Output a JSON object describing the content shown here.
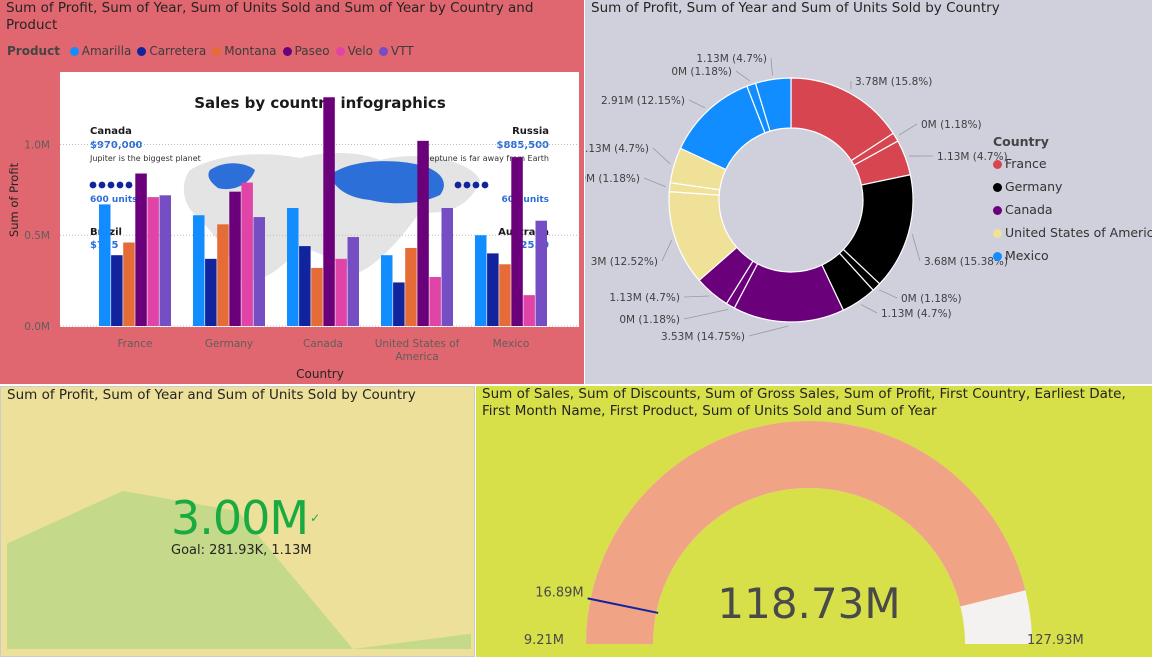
{
  "bar_panel": {
    "title": "Sum of Profit, Sum of Year, Sum of Units Sold and Sum of Year by Country and Product",
    "legend_label": "Product",
    "infographic": {
      "heading": "Sales by country infographics",
      "canada_name": "Canada",
      "canada_value": "$970,000",
      "canada_text": "Jupiter is the biggest planet",
      "canada_units": "600 units",
      "russia_name": "Russia",
      "russia_value": "$885,500",
      "russia_text": "Neptune is far away from Earth",
      "russia_units": "600 units",
      "brazil_name": "Brazil",
      "brazil_value": "$7..5",
      "australia_name": "Australia",
      "australia_value": "$25..0"
    }
  },
  "donut_panel": {
    "title": "Sum of Profit, Sum of Year and Sum of Units Sold by Country",
    "legend_title": "Country"
  },
  "card_panel": {
    "title": "Sum of Profit, Sum of Year and Sum of Units Sold by Country",
    "value": "3.00M",
    "check": "✓",
    "goal": "Goal: 281.93K, 1.13M"
  },
  "gauge_panel": {
    "title": "Sum of Sales, Sum of Discounts, Sum of Gross Sales, Sum of Profit, First Country, Earliest Date, First Month Name, First Product, Sum of Units Sold and Sum of Year",
    "value_label": "118.73M",
    "min_label": "9.21M",
    "max_label": "127.93M",
    "target_label": "16.89M"
  },
  "chart_data": [
    {
      "type": "bar",
      "title": "Sum of Profit, Sum of Year, Sum of Units Sold and Sum of Year by Country and Product",
      "xlabel": "Country",
      "ylabel": "Sum of Profit",
      "ylim": [
        0,
        1300000
      ],
      "yticks": [
        "0.0M",
        "0.5M",
        "1.0M"
      ],
      "ytick_values": [
        0,
        500000,
        1000000
      ],
      "categories": [
        "France",
        "Germany",
        "Canada",
        "United States of America",
        "Mexico"
      ],
      "category_lines": [
        [
          "France"
        ],
        [
          "Germany"
        ],
        [
          "Canada"
        ],
        [
          "United States of",
          "America"
        ],
        [
          "Mexico"
        ]
      ],
      "legend_title": "Product",
      "legend_position": "top",
      "series": [
        {
          "name": "Amarilla",
          "color": "#118dff",
          "values": [
            670000,
            610000,
            650000,
            390000,
            500000
          ]
        },
        {
          "name": "Carretera",
          "color": "#12239e",
          "values": [
            390000,
            370000,
            440000,
            240000,
            400000
          ]
        },
        {
          "name": "Montana",
          "color": "#e66c37",
          "values": [
            460000,
            560000,
            320000,
            430000,
            340000
          ]
        },
        {
          "name": "Paseo",
          "color": "#6b007b",
          "values": [
            840000,
            740000,
            1260000,
            1020000,
            930000
          ]
        },
        {
          "name": "Velo",
          "color": "#e044a7",
          "values": [
            710000,
            790000,
            370000,
            270000,
            170000
          ]
        },
        {
          "name": "VTT",
          "color": "#744ec2",
          "values": [
            720000,
            600000,
            490000,
            650000,
            580000
          ]
        }
      ]
    },
    {
      "type": "pie",
      "subtype": "donut",
      "title": "Sum of Profit, Sum of Year and Sum of Units Sold by Country",
      "legend_title": "Country",
      "legend_position": "right",
      "countries": [
        {
          "name": "France",
          "color": "#d64550"
        },
        {
          "name": "Germany",
          "color": "#000000"
        },
        {
          "name": "Canada",
          "color": "#6b007b"
        },
        {
          "name": "United States of America",
          "color": "#f0e199"
        },
        {
          "name": "Mexico",
          "color": "#118dff"
        }
      ],
      "slices": [
        {
          "country": "France",
          "percent": 15.8,
          "label": "3.78M (15.8%)"
        },
        {
          "country": "France",
          "percent": 1.18,
          "label": "0M (1.18%)"
        },
        {
          "country": "France",
          "percent": 4.7,
          "label": "1.13M (4.7%)"
        },
        {
          "country": "Germany",
          "percent": 15.38,
          "label": "3.68M (15.38%)"
        },
        {
          "country": "Germany",
          "percent": 1.18,
          "label": "0M (1.18%)"
        },
        {
          "country": "Germany",
          "percent": 4.7,
          "label": "1.13M (4.7%)"
        },
        {
          "country": "Canada",
          "percent": 14.75,
          "label": "3.53M (14.75%)"
        },
        {
          "country": "Canada",
          "percent": 1.18,
          "label": "0M (1.18%)"
        },
        {
          "country": "Canada",
          "percent": 4.7,
          "label": "1.13M (4.7%)"
        },
        {
          "country": "United States of America",
          "percent": 12.52,
          "label": "3M (12.52%)"
        },
        {
          "country": "United States of America",
          "percent": 1.18,
          "label": "0M (1.18%)"
        },
        {
          "country": "United States of America",
          "percent": 4.7,
          "label": "1.13M (4.7%)"
        },
        {
          "country": "Mexico",
          "percent": 12.15,
          "label": "2.91M (12.15%)"
        },
        {
          "country": "Mexico",
          "percent": 1.18,
          "label": "0M (1.18%)"
        },
        {
          "country": "Mexico",
          "percent": 4.7,
          "label": "1.13M (4.7%)"
        }
      ]
    },
    {
      "type": "area",
      "subtype": "kpi",
      "value": "3.00M",
      "goal": "Goal: 281.93K, 1.13M",
      "trend": [
        0.62,
        0.93,
        0.81,
        0.0,
        0.09
      ]
    },
    {
      "type": "gauge",
      "min": 9210000,
      "max": 127930000,
      "value": 118730000,
      "target": 16890000,
      "value_label": "118.73M",
      "min_label": "9.21M",
      "max_label": "127.93M",
      "target_label": "16.89M",
      "fill_color": "#f0a385",
      "track_color": "#f3f2f1",
      "target_color": "#12239e"
    }
  ]
}
